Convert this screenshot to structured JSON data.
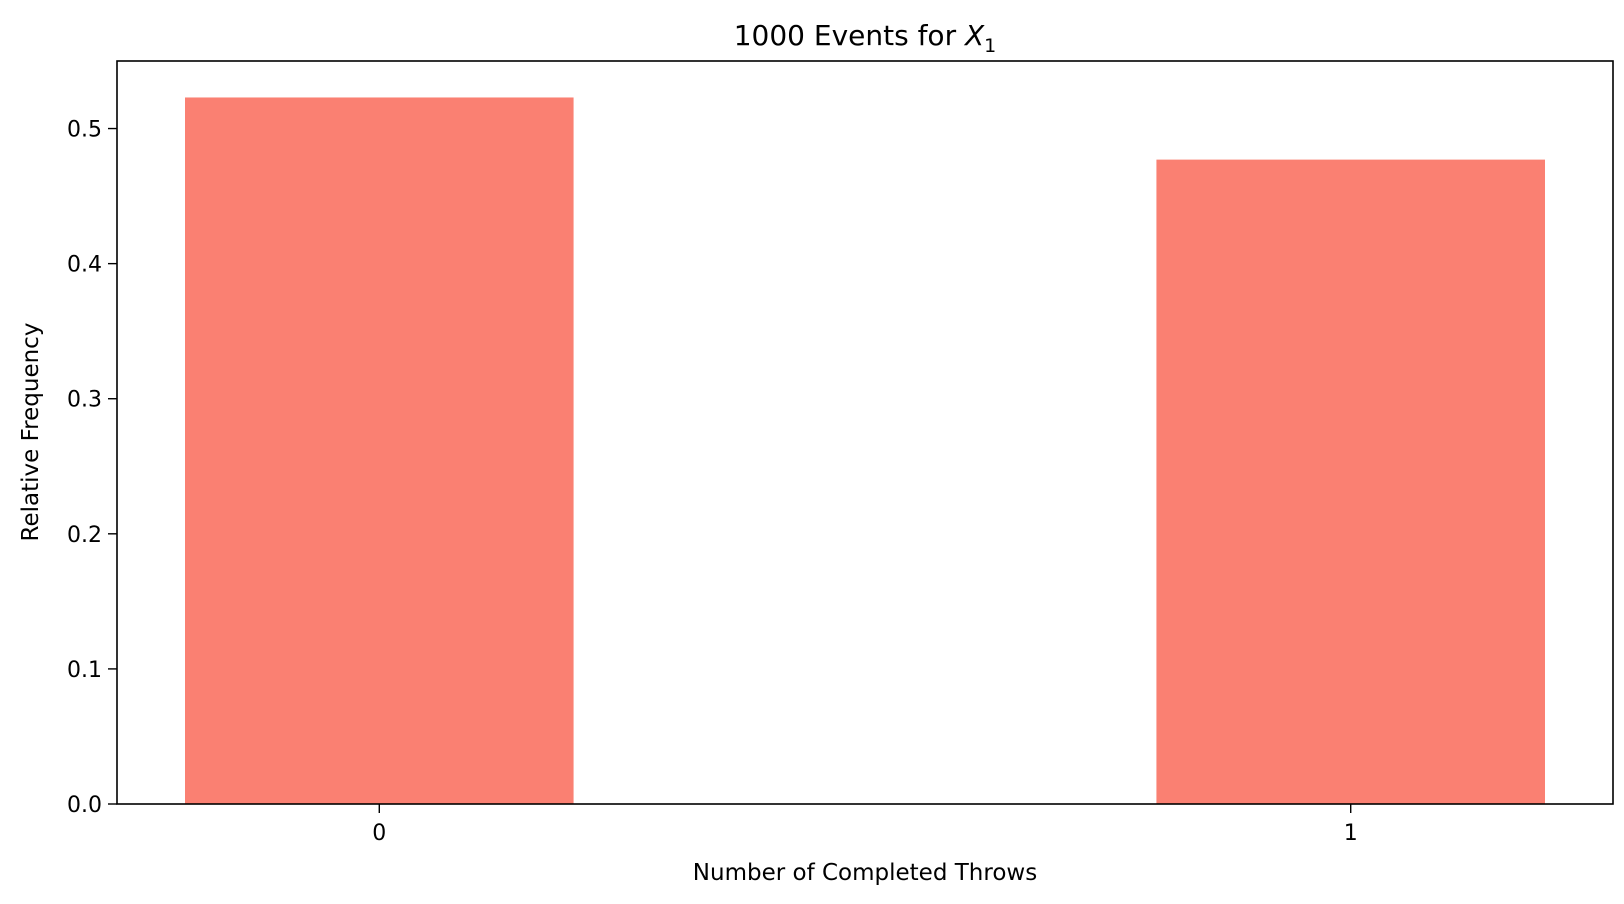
{
  "chart_data": {
    "type": "bar",
    "title_prefix": "1000 Events for ",
    "title_var": "X",
    "title_sub": "1",
    "xlabel": "Number of Completed Throws",
    "ylabel": "Relative Frequency",
    "categories": [
      "0",
      "1"
    ],
    "values": [
      0.523,
      0.477
    ],
    "ylim": [
      0,
      0.55
    ],
    "yticks": [
      "0.0",
      "0.1",
      "0.2",
      "0.3",
      "0.4",
      "0.5"
    ],
    "bar_color": "#fa8072",
    "grid": false,
    "legend": "none"
  }
}
